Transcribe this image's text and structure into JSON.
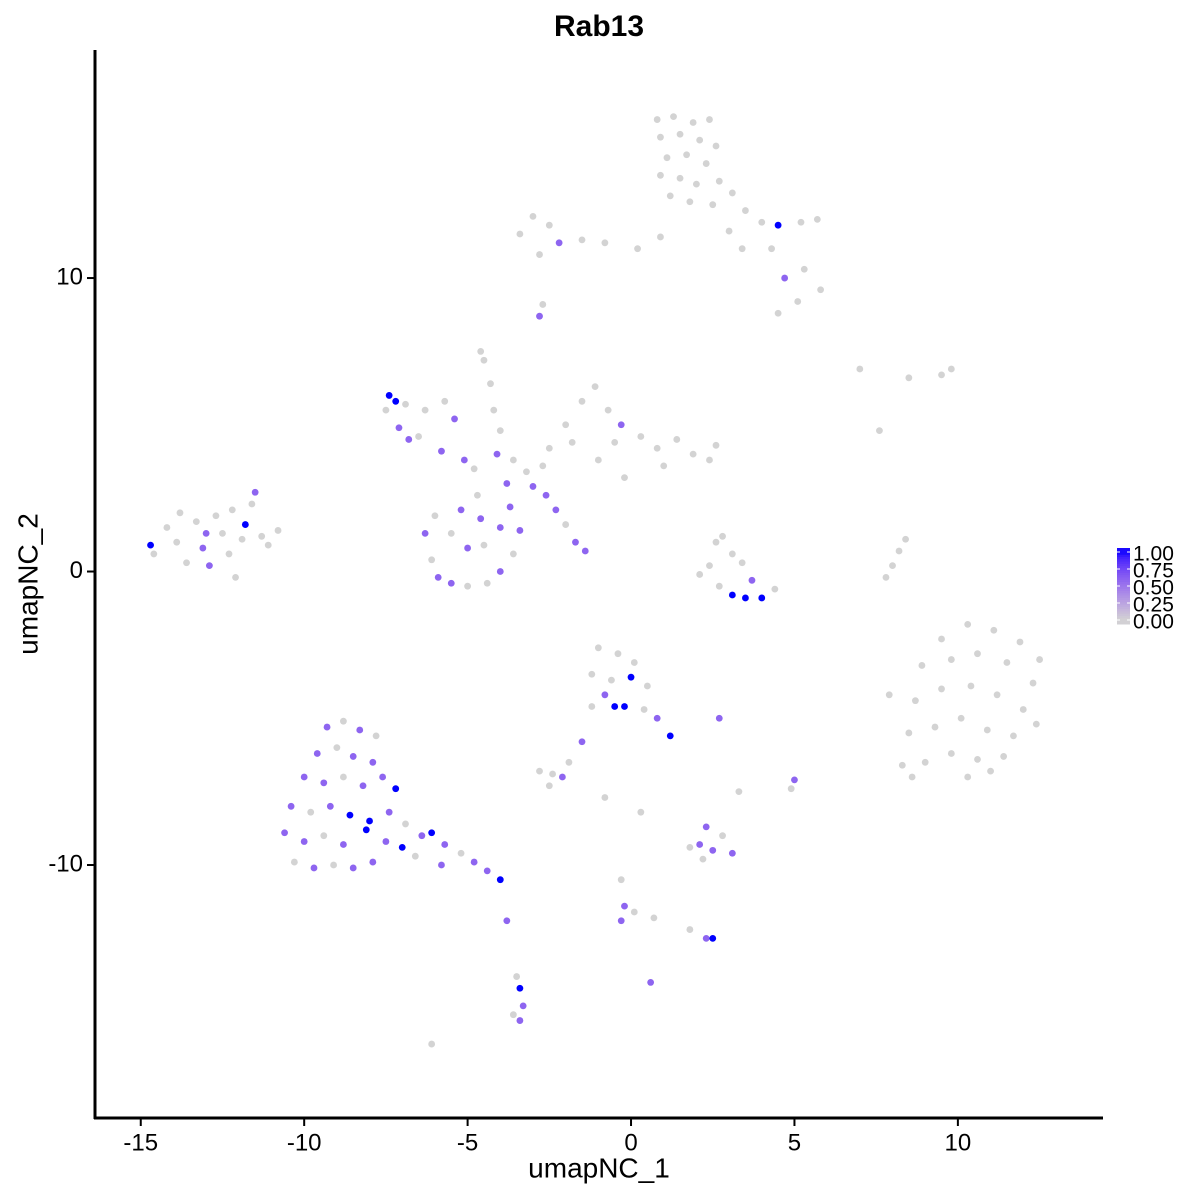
{
  "chart_data": {
    "type": "scatter",
    "title": "Rab13",
    "xlabel": "umapNC_1",
    "ylabel": "umapNC_2",
    "xlim": [
      -16.4,
      14.44
    ],
    "ylim": [
      -18.62,
      17.77
    ],
    "xticks": [
      -15,
      -10,
      -5,
      0,
      5,
      10
    ],
    "yticks": [
      -10,
      0,
      10
    ],
    "x": [
      0.8,
      1.3,
      1.9,
      2.4,
      0.9,
      1.5,
      2.1,
      2.6,
      1.1,
      1.7,
      2.3,
      0.9,
      1.5,
      2.0,
      2.7,
      1.2,
      1.8,
      2.5,
      3.1,
      3.5,
      4.0,
      4.5,
      5.2,
      5.7,
      4.3,
      4.7,
      5.3,
      5.8,
      5.1,
      4.5,
      3.4,
      3.0,
      -3.4,
      -3.0,
      -2.5,
      -2.2,
      -1.5,
      -0.8,
      0.2,
      0.9,
      -2.8,
      -2.7,
      -2.8,
      -7.4,
      -7.2,
      -7.5,
      -7.1,
      -6.8,
      -6.9,
      -6.3,
      -5.7,
      -5.4,
      -5.8,
      -5.1,
      -4.8,
      -6.5,
      -4.6,
      -4.5,
      -4.3,
      -4.2,
      -4.0,
      -4.1,
      -3.6,
      -3.2,
      -3.8,
      -3.0,
      -2.7,
      -2.5,
      -2.0,
      -1.5,
      -1.1,
      -0.7,
      -0.3,
      -1.8,
      -0.5,
      0.3,
      0.8,
      1.4,
      1.9,
      2.4,
      2.6,
      1.0,
      -1.0,
      -0.2,
      -2.6,
      -2.3,
      -2.0,
      -1.7,
      -1.4,
      -6.3,
      -6.1,
      -5.9,
      -5.5,
      -5.0,
      -4.4,
      -4.0,
      -3.6,
      -3.4,
      -4.0,
      -4.6,
      -5.2,
      -4.7,
      -5.5,
      -5.0,
      -4.5,
      -3.7,
      -6.0,
      -14.7,
      -14.6,
      -14.2,
      -13.9,
      -13.6,
      -13.3,
      -13.1,
      -12.9,
      -12.7,
      -12.5,
      -12.3,
      -12.1,
      -11.9,
      -11.8,
      -11.6,
      -11.5,
      -11.3,
      -10.8,
      -11.1,
      -13.8,
      -12.2,
      -13.0,
      2.6,
      2.8,
      3.1,
      2.4,
      2.1,
      2.7,
      3.1,
      3.5,
      4.0,
      4.4,
      3.4,
      3.7,
      8.4,
      8.2,
      8.0,
      7.8,
      9.5,
      10.3,
      11.1,
      11.9,
      12.5,
      8.9,
      9.8,
      10.6,
      11.5,
      12.3,
      7.9,
      8.7,
      9.5,
      10.4,
      11.2,
      12.0,
      8.5,
      9.3,
      10.1,
      10.9,
      11.7,
      12.4,
      8.3,
      9.0,
      9.8,
      10.6,
      11.4,
      8.6,
      10.3,
      11.0,
      -1.0,
      -0.4,
      0.1,
      -1.2,
      -0.6,
      0.0,
      0.5,
      -0.8,
      -0.5,
      -0.2,
      0.4,
      0.8,
      1.2,
      -1.2,
      -1.5,
      -1.9,
      2.7,
      -9.3,
      -8.8,
      -8.3,
      -7.8,
      -9.6,
      -9.0,
      -8.5,
      -7.9,
      -10.0,
      -9.4,
      -8.8,
      -8.2,
      -7.6,
      -7.2,
      -10.4,
      -9.8,
      -9.2,
      -8.6,
      -8.0,
      -7.4,
      -6.9,
      -10.6,
      -10.0,
      -9.4,
      -8.8,
      -8.1,
      -7.5,
      -7.0,
      -6.4,
      -6.1,
      -10.3,
      -9.7,
      -9.1,
      -8.5,
      -7.9,
      -5.7,
      -5.2,
      -4.8,
      -4.4,
      -4.0,
      -3.8,
      -5.8,
      -6.6,
      -2.8,
      -2.4,
      -2.1,
      -2.5,
      -0.8,
      0.3,
      2.1,
      2.3,
      2.5,
      2.8,
      2.2,
      3.1,
      1.8,
      3.3,
      -0.3,
      -0.2,
      -0.3,
      0.1,
      0.7,
      1.8,
      2.3,
      2.5,
      -3.5,
      -3.4,
      -3.3,
      -3.4,
      -3.6,
      0.6,
      5.0,
      4.9,
      -6.1,
      7.0,
      9.8,
      9.5,
      7.6,
      8.5
    ],
    "values": [
      15.4,
      15.5,
      15.3,
      15.4,
      14.8,
      14.9,
      14.7,
      14.5,
      14.1,
      14.2,
      13.9,
      13.5,
      13.4,
      13.2,
      13.3,
      12.8,
      12.6,
      12.5,
      12.9,
      12.3,
      11.9,
      11.8,
      11.9,
      12.0,
      11.0,
      10.0,
      10.3,
      9.6,
      9.2,
      8.8,
      11.0,
      11.6,
      11.5,
      12.1,
      11.8,
      11.2,
      11.3,
      11.2,
      11.0,
      11.4,
      10.8,
      9.1,
      8.7,
      6.0,
      5.8,
      5.5,
      4.9,
      4.5,
      5.7,
      5.5,
      5.8,
      5.2,
      4.1,
      3.8,
      3.5,
      4.6,
      7.5,
      7.2,
      6.4,
      5.5,
      4.8,
      4.0,
      3.8,
      3.4,
      3.0,
      2.9,
      3.6,
      4.2,
      5.0,
      5.8,
      6.3,
      5.5,
      5.0,
      4.4,
      4.4,
      4.6,
      4.2,
      4.5,
      4.0,
      3.8,
      4.3,
      3.6,
      3.8,
      3.2,
      2.6,
      2.1,
      1.6,
      1.0,
      0.7,
      1.3,
      0.4,
      -0.2,
      -0.4,
      -0.5,
      -0.4,
      0.0,
      0.6,
      1.4,
      1.5,
      1.8,
      2.1,
      2.6,
      1.3,
      0.8,
      0.9,
      2.2,
      1.9,
      0.9,
      0.6,
      1.5,
      1.0,
      0.3,
      1.7,
      0.8,
      0.2,
      1.9,
      1.3,
      0.6,
      -0.2,
      1.1,
      1.6,
      2.3,
      2.7,
      1.2,
      1.4,
      0.9,
      2.0,
      2.1,
      1.3,
      1.0,
      1.2,
      0.6,
      0.2,
      -0.1,
      -0.5,
      -0.8,
      -0.9,
      -0.9,
      -0.6,
      0.3,
      -0.3,
      1.1,
      0.7,
      0.2,
      -0.2,
      -2.3,
      -1.8,
      -2.0,
      -2.4,
      -3.0,
      -3.2,
      -3.0,
      -2.8,
      -3.1,
      -3.8,
      -4.2,
      -4.4,
      -4.0,
      -3.9,
      -4.2,
      -4.7,
      -5.5,
      -5.3,
      -5.0,
      -5.4,
      -5.6,
      -5.2,
      -6.6,
      -6.5,
      -6.2,
      -6.4,
      -6.3,
      -7.0,
      -7.0,
      -6.8,
      -2.6,
      -2.8,
      -3.1,
      -3.5,
      -3.7,
      -3.6,
      -3.9,
      -4.2,
      -4.6,
      -4.6,
      -4.7,
      -5.0,
      -5.6,
      -4.6,
      -5.8,
      -6.5,
      -5.0,
      -5.3,
      -5.1,
      -5.4,
      -5.6,
      -6.2,
      -6.0,
      -6.3,
      -6.5,
      -7.0,
      -7.2,
      -7.0,
      -7.3,
      -7.0,
      -7.4,
      -8.0,
      -8.2,
      -8.0,
      -8.3,
      -8.5,
      -8.2,
      -8.6,
      -8.9,
      -9.2,
      -9.0,
      -9.3,
      -8.8,
      -9.2,
      -9.4,
      -9.0,
      -8.9,
      -9.9,
      -10.1,
      -10.0,
      -10.1,
      -9.9,
      -9.3,
      -9.6,
      -9.9,
      -10.2,
      -10.5,
      -11.9,
      -10.0,
      -9.7,
      -6.8,
      -6.9,
      -7.0,
      -7.3,
      -7.7,
      -8.2,
      -9.3,
      -8.7,
      -9.5,
      -9.0,
      -9.8,
      -9.6,
      -9.4,
      -7.5,
      -10.5,
      -11.4,
      -11.9,
      -11.6,
      -11.8,
      -12.2,
      -12.5,
      -12.5,
      -13.8,
      -14.2,
      -14.8,
      -15.3,
      -15.1,
      -14.0,
      -7.1,
      -7.4,
      -16.1,
      6.9,
      6.9,
      6.7,
      4.8,
      6.6
    ],
    "expression": [
      0,
      0,
      0,
      0,
      0,
      0,
      0,
      0,
      0,
      0,
      0,
      0,
      0,
      0,
      0,
      0,
      0,
      0,
      0,
      0,
      0,
      1,
      0,
      0,
      0,
      0.6,
      0,
      0,
      0,
      0,
      0,
      0,
      0,
      0,
      0,
      0.6,
      0,
      0,
      0,
      0,
      0,
      0,
      0.6,
      1,
      1,
      0,
      0.6,
      0.6,
      0,
      0,
      0,
      0.6,
      0.6,
      0.6,
      0,
      0,
      0,
      0,
      0,
      0,
      0,
      0.6,
      0,
      0,
      0.6,
      0.6,
      0,
      0,
      0,
      0,
      0,
      0,
      0.6,
      0,
      0,
      0,
      0,
      0,
      0,
      0,
      0,
      0,
      0,
      0,
      0.6,
      0.6,
      0,
      0.6,
      0.6,
      0.6,
      0,
      0.6,
      0.6,
      0,
      0,
      0.6,
      0,
      0.6,
      0.6,
      0.6,
      0.6,
      0,
      0,
      0.6,
      0,
      0.6,
      0,
      1,
      0,
      0,
      0,
      0,
      0,
      0.6,
      0.6,
      0,
      0,
      0,
      0,
      0,
      1,
      0,
      0.6,
      0,
      0,
      0,
      0,
      0,
      0.6,
      0,
      0,
      0,
      0,
      0,
      0,
      1,
      1,
      1,
      0,
      0,
      0.6,
      0,
      0,
      0,
      0,
      0,
      0,
      0,
      0,
      0,
      0,
      0,
      0,
      0,
      0,
      0,
      0,
      0,
      0,
      0,
      0,
      0,
      0,
      0,
      0,
      0,
      0,
      0,
      0,
      0,
      0,
      0,
      0,
      0,
      0,
      0,
      0,
      0,
      0,
      0,
      1,
      0,
      0.6,
      1,
      1,
      0,
      0.6,
      1,
      0,
      0.6,
      0,
      0.6,
      0.6,
      0,
      0.6,
      0,
      0.6,
      0,
      0.6,
      0.6,
      0.6,
      0.6,
      0,
      0.6,
      0.6,
      1,
      0.6,
      0,
      0.6,
      1,
      1,
      0.6,
      0,
      0.6,
      0.6,
      0,
      0.6,
      1,
      0.6,
      1,
      0.6,
      1,
      0,
      0.6,
      0,
      0.6,
      0.6,
      0.6,
      0,
      0.6,
      0.6,
      1,
      0.6,
      0.6,
      0,
      0,
      0,
      0.6,
      0,
      0,
      0,
      0.6,
      0.6,
      0.6,
      0,
      0,
      0.6,
      0,
      0,
      0,
      0.6,
      0.6,
      0,
      0,
      0,
      0.6,
      1,
      0,
      1,
      0.6,
      0.6,
      0,
      0.6,
      0.6,
      0,
      0,
      0,
      0,
      0,
      0,
      0
    ],
    "colorbar": {
      "lim": [
        0,
        1
      ],
      "colors": [
        "#d3d3d3",
        "#0000ff"
      ],
      "ticks": [
        {
          "value": 0,
          "label": "0.00"
        },
        {
          "value": 0.25,
          "label": "0.25"
        },
        {
          "value": 0.5,
          "label": "0.50"
        },
        {
          "value": 0.75,
          "label": "0.75"
        },
        {
          "value": 1,
          "label": "1.00"
        }
      ]
    }
  }
}
